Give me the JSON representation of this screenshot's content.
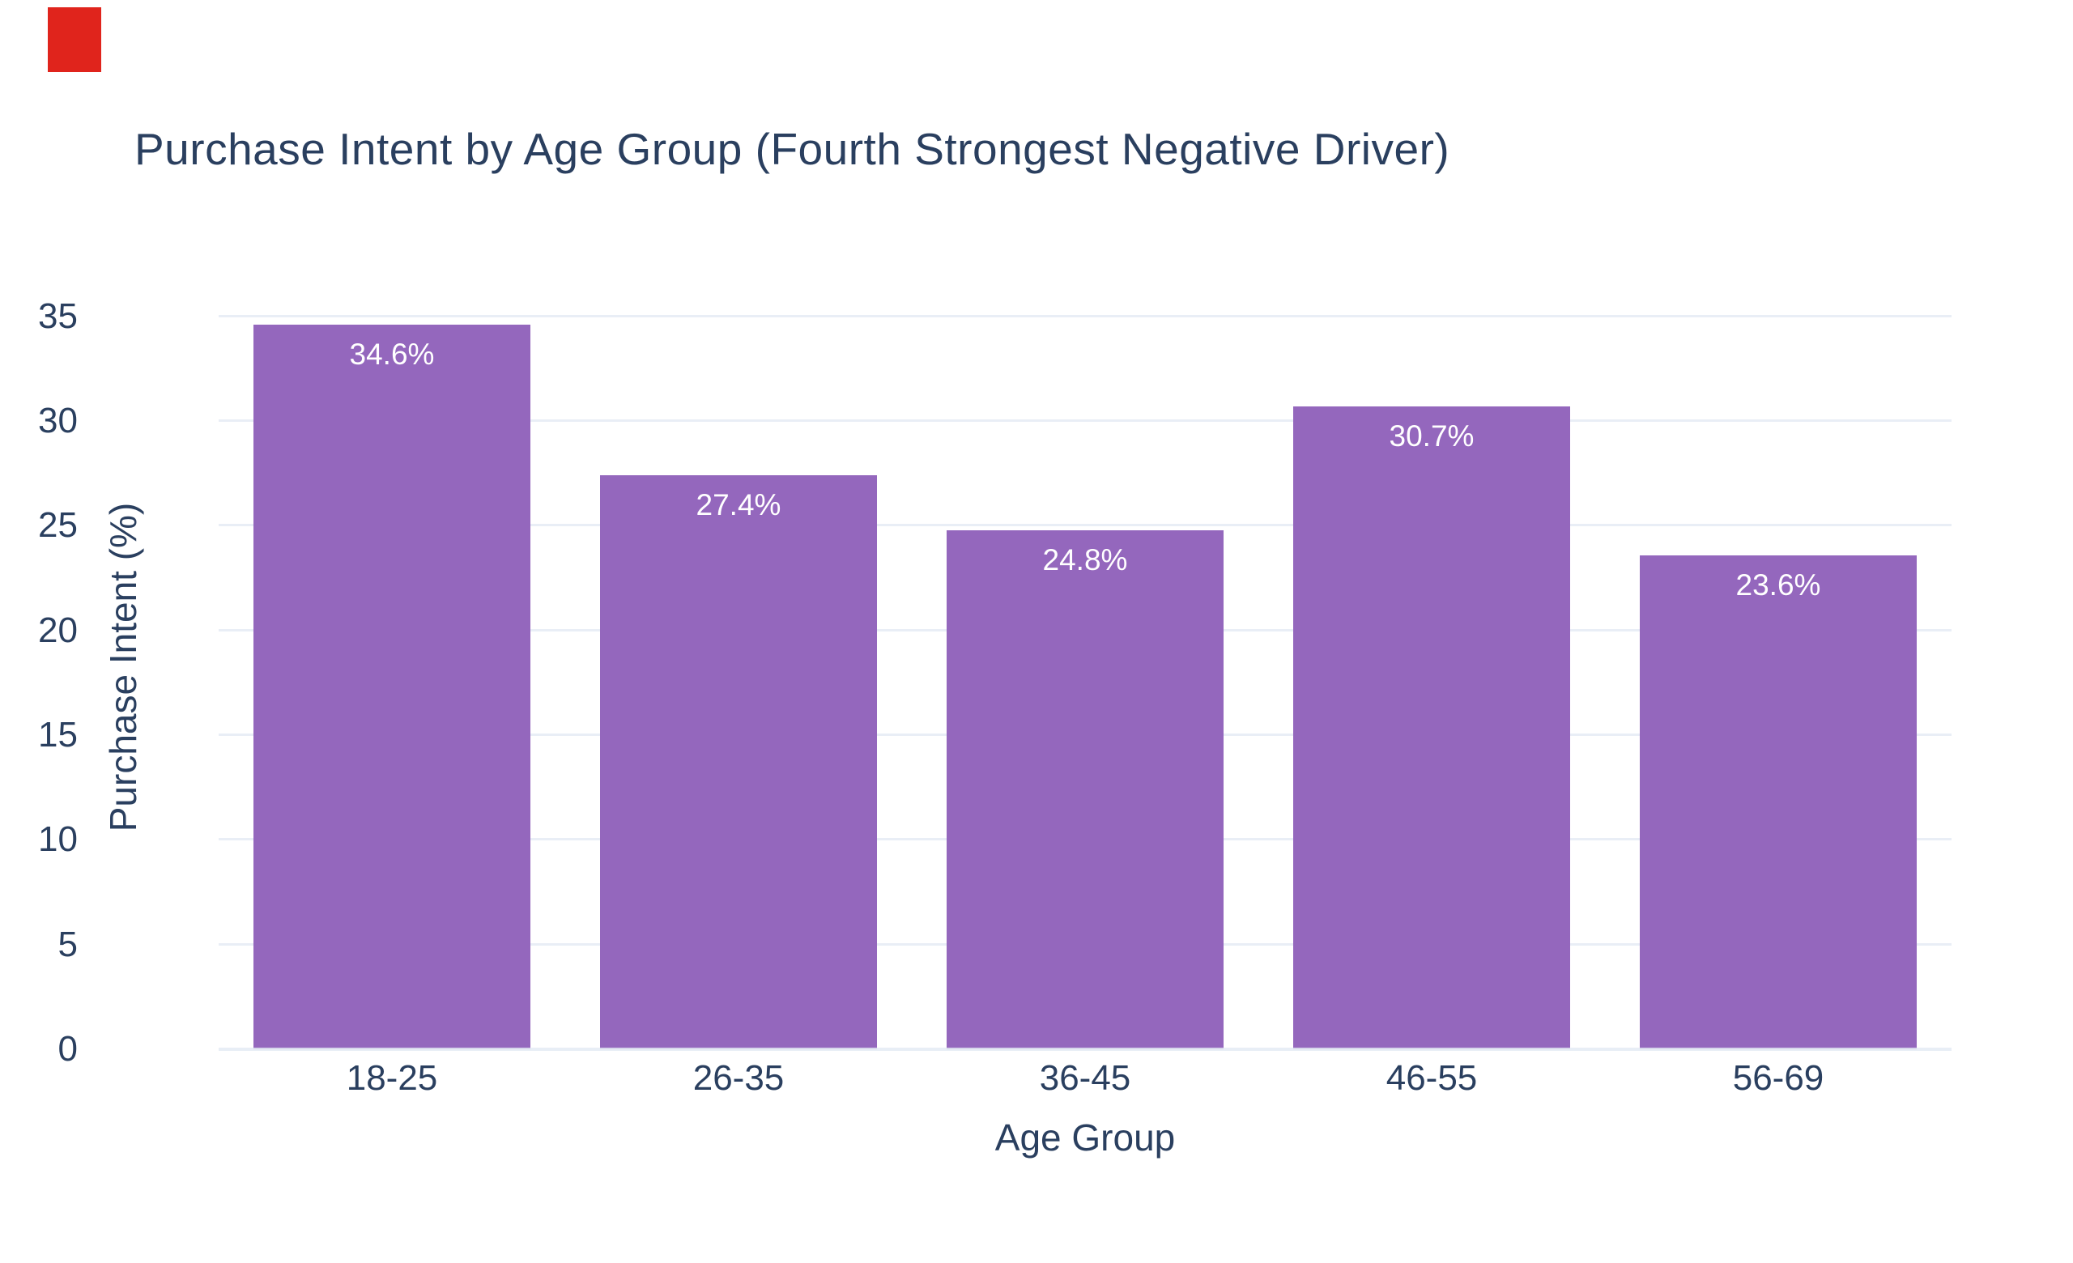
{
  "title": "Purchase Intent by Age Group (Fourth Strongest Negative Driver)",
  "corner_marker_color": "#e0241c",
  "chart_data": {
    "type": "bar",
    "categories": [
      "18-25",
      "26-35",
      "36-45",
      "46-55",
      "56-69"
    ],
    "values": [
      34.6,
      27.4,
      24.8,
      30.7,
      23.6
    ],
    "labels": [
      "34.6%",
      "27.4%",
      "24.8%",
      "30.7%",
      "23.6%"
    ],
    "title": "Purchase Intent by Age Group (Fourth Strongest Negative Driver)",
    "xlabel": "Age Group",
    "ylabel": "Purchase Intent (%)",
    "ylim": [
      0,
      36.5
    ],
    "yticks": [
      0,
      5,
      10,
      15,
      20,
      25,
      30,
      35
    ],
    "grid": "horizontal",
    "legend": "none",
    "bar_color": "#9467bd",
    "bar_label_color": "#ffffff",
    "text_color": "#2a3f5f",
    "grid_color": "#e9eef6",
    "zero_line_color": "#e4ebf5",
    "background_color": "#ffffff"
  }
}
